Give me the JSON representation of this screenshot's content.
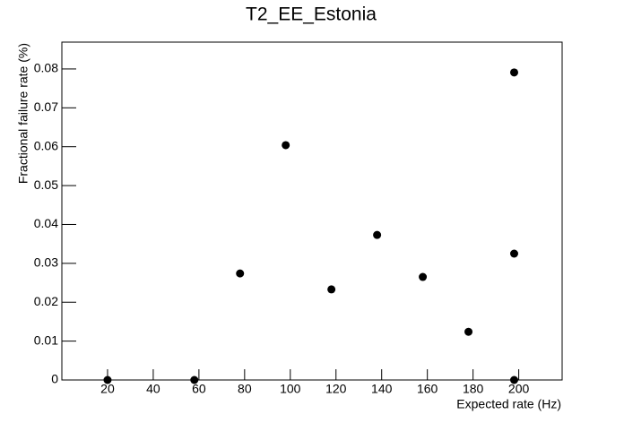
{
  "chart_data": {
    "type": "scatter",
    "title": "T2_EE_Estonia",
    "x_label": "Expected rate (Hz)",
    "y_label": "Fractional failure rate (%)",
    "x": [
      20,
      58,
      78,
      98,
      118,
      138,
      158,
      178,
      198,
      198,
      198
    ],
    "values": [
      0,
      0,
      0.0274,
      0.0604,
      0.0233,
      0.0373,
      0.0265,
      0.0124,
      0.0791,
      0.0325,
      0
    ],
    "color": "#000000",
    "xlim": [
      0,
      219
    ],
    "ylim": [
      0,
      0.0869
    ],
    "xticks": [
      20,
      40,
      60,
      80,
      100,
      120,
      140,
      160,
      180,
      200
    ],
    "yticks": [
      0,
      0.01,
      0.02,
      0.03,
      0.04,
      0.05,
      0.06,
      0.07,
      0.08
    ]
  }
}
